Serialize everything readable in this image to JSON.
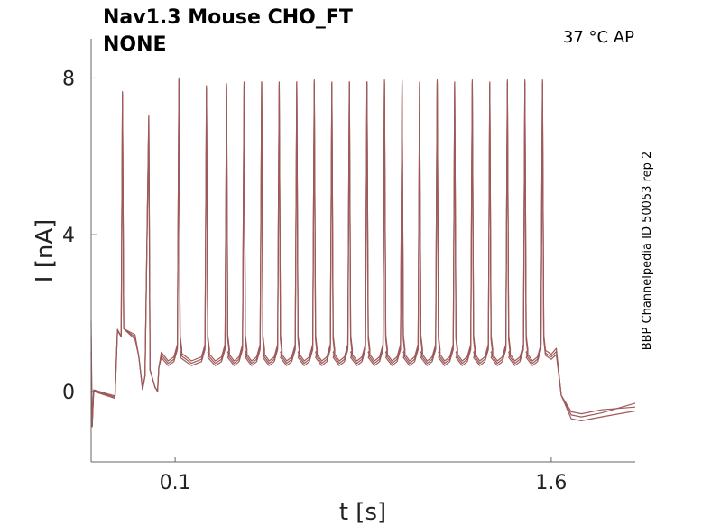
{
  "chart_data": {
    "type": "line",
    "title": "Nav1.3  Mouse  CHO_FT",
    "subtitle": "NONE",
    "annotation": "37 °C  AP",
    "side_annotation": "BBP Channelpedia ID 50053 rep 2",
    "xlabel": "t [s]",
    "ylabel": "I [nA]",
    "xlim": [
      -0.235,
      1.935
    ],
    "ylim": [
      -1.8,
      9.0
    ],
    "x_ticks": [
      0.1,
      1.6
    ],
    "x_tick_labels": [
      "0.1",
      "1.6"
    ],
    "y_ticks": [
      0,
      4,
      8
    ],
    "y_tick_labels": [
      "0",
      "4",
      "8"
    ],
    "grid": false,
    "trace_color": "#9e5a5a",
    "series": [
      {
        "baseline_start": 0.0,
        "baseline_end": -0.18,
        "plateau": 0.95,
        "trough": 0.78,
        "end_value": -0.52,
        "recover_value": -0.4,
        "spike_times": [
          0.115,
          0.225,
          0.305,
          0.375,
          0.445,
          0.515,
          0.585,
          0.655,
          0.725,
          0.795,
          0.865,
          0.935,
          1.005,
          1.075,
          1.145,
          1.215,
          1.285,
          1.355,
          1.425,
          1.495,
          1.565
        ],
        "spike_peaks": [
          8.0,
          7.8,
          7.85,
          7.9,
          7.9,
          7.9,
          7.9,
          7.95,
          7.9,
          7.9,
          7.9,
          7.95,
          7.95,
          7.9,
          7.95,
          7.9,
          7.95,
          7.9,
          7.95,
          7.95,
          7.95
        ]
      },
      {
        "baseline_start": 0.02,
        "baseline_end": -0.15,
        "plateau": 0.88,
        "trough": 0.72,
        "end_value": -0.7,
        "recover_value": -0.5,
        "spike_times": [
          0.115,
          0.225,
          0.305,
          0.375,
          0.445,
          0.515,
          0.585,
          0.655,
          0.725,
          0.795,
          0.865,
          0.935,
          1.005,
          1.075,
          1.145,
          1.215,
          1.285,
          1.355,
          1.425,
          1.495,
          1.565
        ],
        "spike_peaks": [
          7.95,
          7.75,
          7.8,
          7.85,
          7.9,
          7.85,
          7.9,
          7.9,
          7.85,
          7.9,
          7.9,
          7.9,
          7.9,
          7.85,
          7.9,
          7.85,
          7.9,
          7.85,
          7.9,
          7.9,
          7.9
        ]
      },
      {
        "baseline_start": 0.04,
        "baseline_end": -0.12,
        "plateau": 0.82,
        "trough": 0.66,
        "end_value": -0.6,
        "recover_value": -0.3,
        "spike_times": [
          0.115,
          0.225,
          0.305,
          0.375,
          0.445,
          0.515,
          0.585,
          0.655,
          0.725,
          0.795,
          0.865,
          0.935,
          1.005,
          1.075,
          1.145,
          1.215,
          1.285,
          1.355,
          1.425,
          1.495,
          1.565
        ],
        "spike_peaks": [
          7.9,
          7.7,
          7.75,
          7.8,
          7.85,
          7.8,
          7.85,
          7.85,
          7.8,
          7.85,
          7.85,
          7.85,
          7.85,
          7.8,
          7.85,
          7.8,
          7.85,
          7.8,
          7.85,
          7.85,
          7.85
        ]
      }
    ],
    "early_spikes": [
      {
        "t": -0.11,
        "peak": 7.65
      },
      {
        "t": -0.005,
        "peak": 7.05
      }
    ]
  }
}
